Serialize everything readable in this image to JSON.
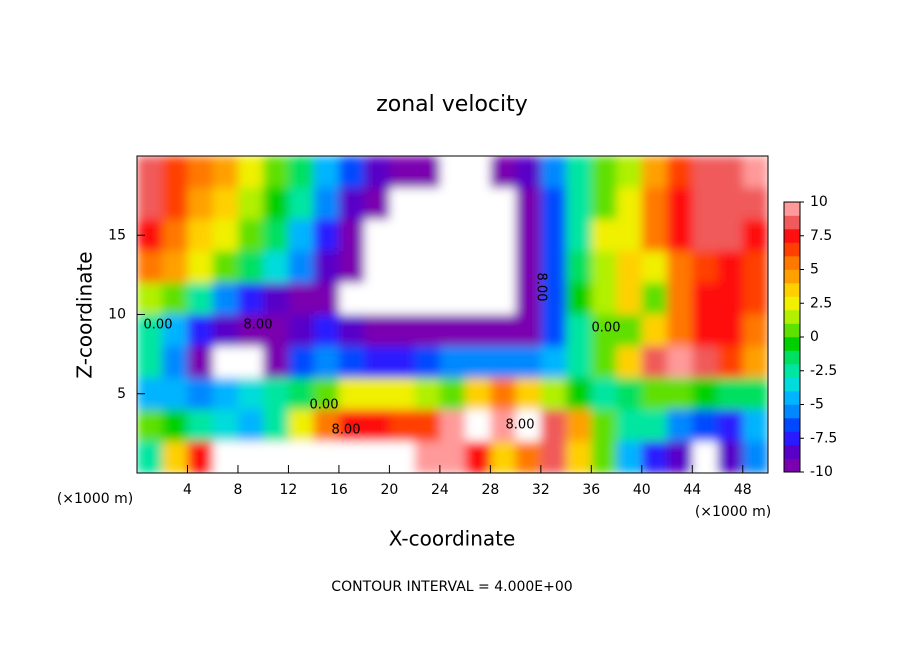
{
  "chart_data": {
    "type": "contour",
    "title": "zonal velocity",
    "x_label": "X-coordinate",
    "y_label": "Z-coordinate",
    "x_unit": "(×1000 m)",
    "y_unit": "(×1000 m)",
    "footnote": "CONTOUR INTERVAL = 4.000E+00",
    "xlim": [
      0,
      50
    ],
    "ylim": [
      0,
      20
    ],
    "xticks": [
      4,
      8,
      12,
      16,
      20,
      24,
      28,
      32,
      36,
      40,
      44,
      48
    ],
    "yticks": [
      5,
      10,
      15
    ],
    "x": [
      1,
      3,
      5,
      7,
      9,
      11,
      13,
      15,
      17,
      19,
      21,
      23,
      25,
      27,
      29,
      31,
      33,
      35,
      37,
      39,
      41,
      43,
      45,
      47,
      49
    ],
    "y": [
      19,
      17,
      15,
      13,
      11,
      9,
      7,
      5,
      3,
      1
    ],
    "z": [
      [
        8,
        6,
        5,
        4,
        2,
        0,
        -2,
        -5,
        -7,
        -9,
        -10,
        -10,
        -11,
        -11,
        -10,
        -9,
        -6,
        -3,
        0,
        1,
        4,
        6,
        8,
        8,
        9
      ],
      [
        8,
        6,
        4,
        3,
        1,
        -1,
        -3,
        -6,
        -9,
        -10,
        -11,
        -12,
        -13,
        -12,
        -11,
        -10,
        -7,
        -3,
        0,
        2,
        5,
        7,
        8,
        8,
        8
      ],
      [
        7,
        5,
        3,
        2,
        0,
        -2,
        -5,
        -8,
        -10,
        -11,
        -12,
        -14,
        -14,
        -13,
        -12,
        -10,
        -7,
        -3,
        2,
        2,
        5,
        7,
        8,
        8,
        7
      ],
      [
        5,
        4,
        2,
        0,
        -2,
        -4,
        -6,
        -9,
        -10,
        -11,
        -12,
        -14,
        -14,
        -13,
        -12,
        -10,
        -7,
        -2,
        1,
        3,
        2,
        5,
        6,
        7,
        6
      ],
      [
        1,
        0,
        -3,
        -6,
        -8,
        -9,
        -10,
        -10,
        -11,
        -12,
        -12,
        -12,
        -12,
        -11,
        -11,
        -10,
        -7,
        -1,
        1,
        3,
        0,
        5,
        7,
        7,
        6
      ],
      [
        -3,
        -5,
        -8,
        -9,
        -10,
        -10,
        -9,
        -8,
        -9,
        -10,
        -10,
        -10,
        -10,
        -10,
        -10,
        -10,
        -7,
        -3,
        0,
        0,
        3,
        5,
        7,
        7,
        5
      ],
      [
        -3,
        -6,
        -10,
        -11,
        -12,
        -10,
        -7,
        -6,
        -7,
        -8,
        -8,
        -7,
        -6,
        -6,
        -6,
        -6,
        -5,
        -3,
        0,
        3,
        8,
        9,
        8,
        6,
        4
      ],
      [
        -5,
        -5,
        -6,
        -5,
        -4,
        -3,
        -2,
        0,
        2,
        2,
        2,
        1,
        0,
        3,
        5,
        3,
        1,
        -1,
        -3,
        -2,
        0,
        0,
        -1,
        -2,
        -2
      ],
      [
        0,
        -1,
        -3,
        -4,
        -5,
        -3,
        2,
        5,
        7,
        7,
        6,
        6,
        9,
        12,
        9,
        11,
        8,
        4,
        0,
        -3,
        -3,
        -6,
        -7,
        -8,
        -5
      ],
      [
        -3,
        3,
        7,
        11,
        12,
        12,
        11,
        11,
        12,
        12,
        11,
        10,
        9,
        7,
        3,
        5,
        8,
        3,
        0,
        -5,
        -8,
        -9,
        -11,
        -9,
        -6
      ]
    ],
    "zlim": [
      -10,
      10
    ],
    "zticks": [
      10,
      7.5,
      5,
      2.5,
      0,
      -2.5,
      -5,
      -7.5,
      -10
    ],
    "colors": [
      "#7a00b0",
      "#5800c8",
      "#2a1aff",
      "#0048ff",
      "#0088ff",
      "#00b4ff",
      "#00dcdc",
      "#00e6a0",
      "#00e060",
      "#00d000",
      "#5ee000",
      "#b0f000",
      "#f0f000",
      "#ffd000",
      "#ffa000",
      "#ff7800",
      "#ff4000",
      "#ff1010",
      "#f05a5a",
      "#ff9a9a"
    ],
    "contour_labels": [
      "0.00",
      "8.00",
      "8.00",
      "0.00",
      "0.00",
      "8.00",
      "8.00"
    ]
  }
}
